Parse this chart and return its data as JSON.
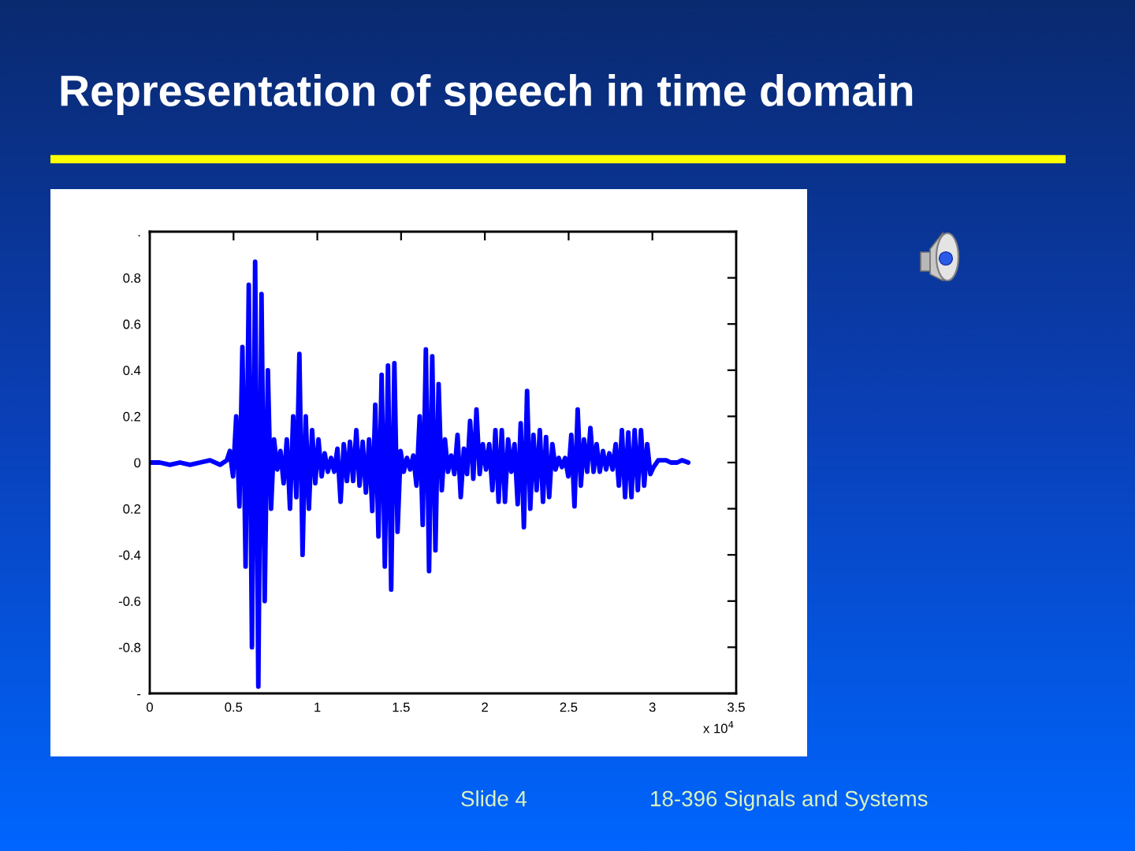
{
  "chart_data": {
    "type": "line",
    "title": "Representation of speech in time domain",
    "annotations": [
      "x 10$^{4}$",
      "Slide 4",
      "18-396 Signals and Systems"
    ],
    "color": "#0000ff",
    "line_style": "solid",
    "xlim": [
      0,
      3.5
    ],
    "xticks": [
      0,
      0.5,
      1,
      1.5,
      2,
      2.5,
      3,
      3.5
    ],
    "ylim": [
      -1,
      1
    ],
    "yticks": [
      {
        "value": -1,
        "label": "-"
      },
      -0.8,
      -0.6,
      -0.4,
      {
        "value": -0.2,
        "label": "0.2"
      },
      0,
      0.2,
      0.4,
      0.6,
      0.8,
      {
        "value": 1,
        "label": "."
      }
    ],
    "x": [
      0,
      0.06,
      0.12,
      0.18,
      0.24,
      0.3,
      0.36,
      0.42,
      0.46,
      0.478,
      0.497,
      0.516,
      0.535,
      0.553,
      0.572,
      0.591,
      0.61,
      0.629,
      0.648,
      0.667,
      0.686,
      0.705,
      0.724,
      0.742,
      0.761,
      0.78,
      0.799,
      0.818,
      0.837,
      0.856,
      0.875,
      0.893,
      0.912,
      0.931,
      0.95,
      0.969,
      0.988,
      1.007,
      1.026,
      1.044,
      1.063,
      1.082,
      1.101,
      1.12,
      1.139,
      1.158,
      1.177,
      1.195,
      1.214,
      1.233,
      1.252,
      1.271,
      1.29,
      1.309,
      1.328,
      1.346,
      1.365,
      1.384,
      1.403,
      1.422,
      1.441,
      1.46,
      1.479,
      1.497,
      1.516,
      1.535,
      1.554,
      1.573,
      1.592,
      1.611,
      1.629,
      1.648,
      1.667,
      1.686,
      1.705,
      1.724,
      1.743,
      1.762,
      1.78,
      1.799,
      1.818,
      1.837,
      1.856,
      1.875,
      1.894,
      1.912,
      1.931,
      1.95,
      1.969,
      1.988,
      2.007,
      2.026,
      2.045,
      2.063,
      2.082,
      2.101,
      2.12,
      2.139,
      2.158,
      2.177,
      2.196,
      2.214,
      2.233,
      2.252,
      2.271,
      2.29,
      2.309,
      2.328,
      2.347,
      2.365,
      2.384,
      2.403,
      2.422,
      2.441,
      2.46,
      2.479,
      2.498,
      2.516,
      2.535,
      2.554,
      2.573,
      2.592,
      2.611,
      2.63,
      2.649,
      2.667,
      2.686,
      2.705,
      2.724,
      2.743,
      2.762,
      2.781,
      2.8,
      2.818,
      2.837,
      2.856,
      2.875,
      2.894,
      2.913,
      2.932,
      2.951,
      2.969,
      2.988,
      3.007,
      3.035,
      3.082,
      3.11,
      3.148,
      3.176,
      3.214
    ],
    "values": [
      0,
      0,
      -0.01,
      0,
      -0.01,
      0,
      0.01,
      -0.01,
      0.01,
      0.05,
      -0.06,
      0.2,
      -0.19,
      0.5,
      -0.45,
      0.77,
      -0.8,
      0.87,
      -0.97,
      0.73,
      -0.6,
      0.4,
      -0.2,
      0.1,
      -0.03,
      0.05,
      -0.09,
      0.1,
      -0.2,
      0.2,
      -0.15,
      0.47,
      -0.4,
      0.2,
      -0.2,
      0.14,
      -0.09,
      0.1,
      -0.06,
      0.04,
      -0.04,
      0.02,
      -0.04,
      0.06,
      -0.17,
      0.08,
      -0.08,
      0.09,
      -0.08,
      0.14,
      -0.1,
      0.09,
      -0.13,
      0.1,
      -0.21,
      0.25,
      -0.32,
      0.38,
      -0.45,
      0.42,
      -0.55,
      0.43,
      -0.3,
      0.05,
      -0.04,
      0.02,
      -0.03,
      0.03,
      -0.1,
      0.2,
      -0.27,
      0.49,
      -0.47,
      0.46,
      -0.38,
      0.34,
      -0.12,
      0.1,
      -0.04,
      0.03,
      -0.05,
      0.12,
      -0.15,
      0.06,
      -0.05,
      0.18,
      -0.07,
      0.23,
      -0.05,
      0.08,
      -0.03,
      0.08,
      -0.12,
      0.14,
      -0.17,
      0.14,
      -0.17,
      0.1,
      -0.04,
      0.08,
      -0.18,
      0.17,
      -0.28,
      0.31,
      -0.2,
      0.12,
      -0.12,
      0.14,
      -0.17,
      0.11,
      -0.15,
      0.08,
      -0.03,
      0.02,
      -0.02,
      0.02,
      -0.06,
      0.12,
      -0.19,
      0.23,
      -0.1,
      0.1,
      -0.04,
      0.15,
      -0.04,
      0.08,
      -0.04,
      0.05,
      -0.03,
      0.04,
      -0.03,
      0.08,
      -0.1,
      0.14,
      -0.15,
      0.13,
      -0.15,
      0.14,
      -0.12,
      0.14,
      -0.1,
      0.08,
      -0.05,
      -0.02,
      0.01,
      0.01,
      0,
      0,
      0.01,
      0
    ]
  }
}
